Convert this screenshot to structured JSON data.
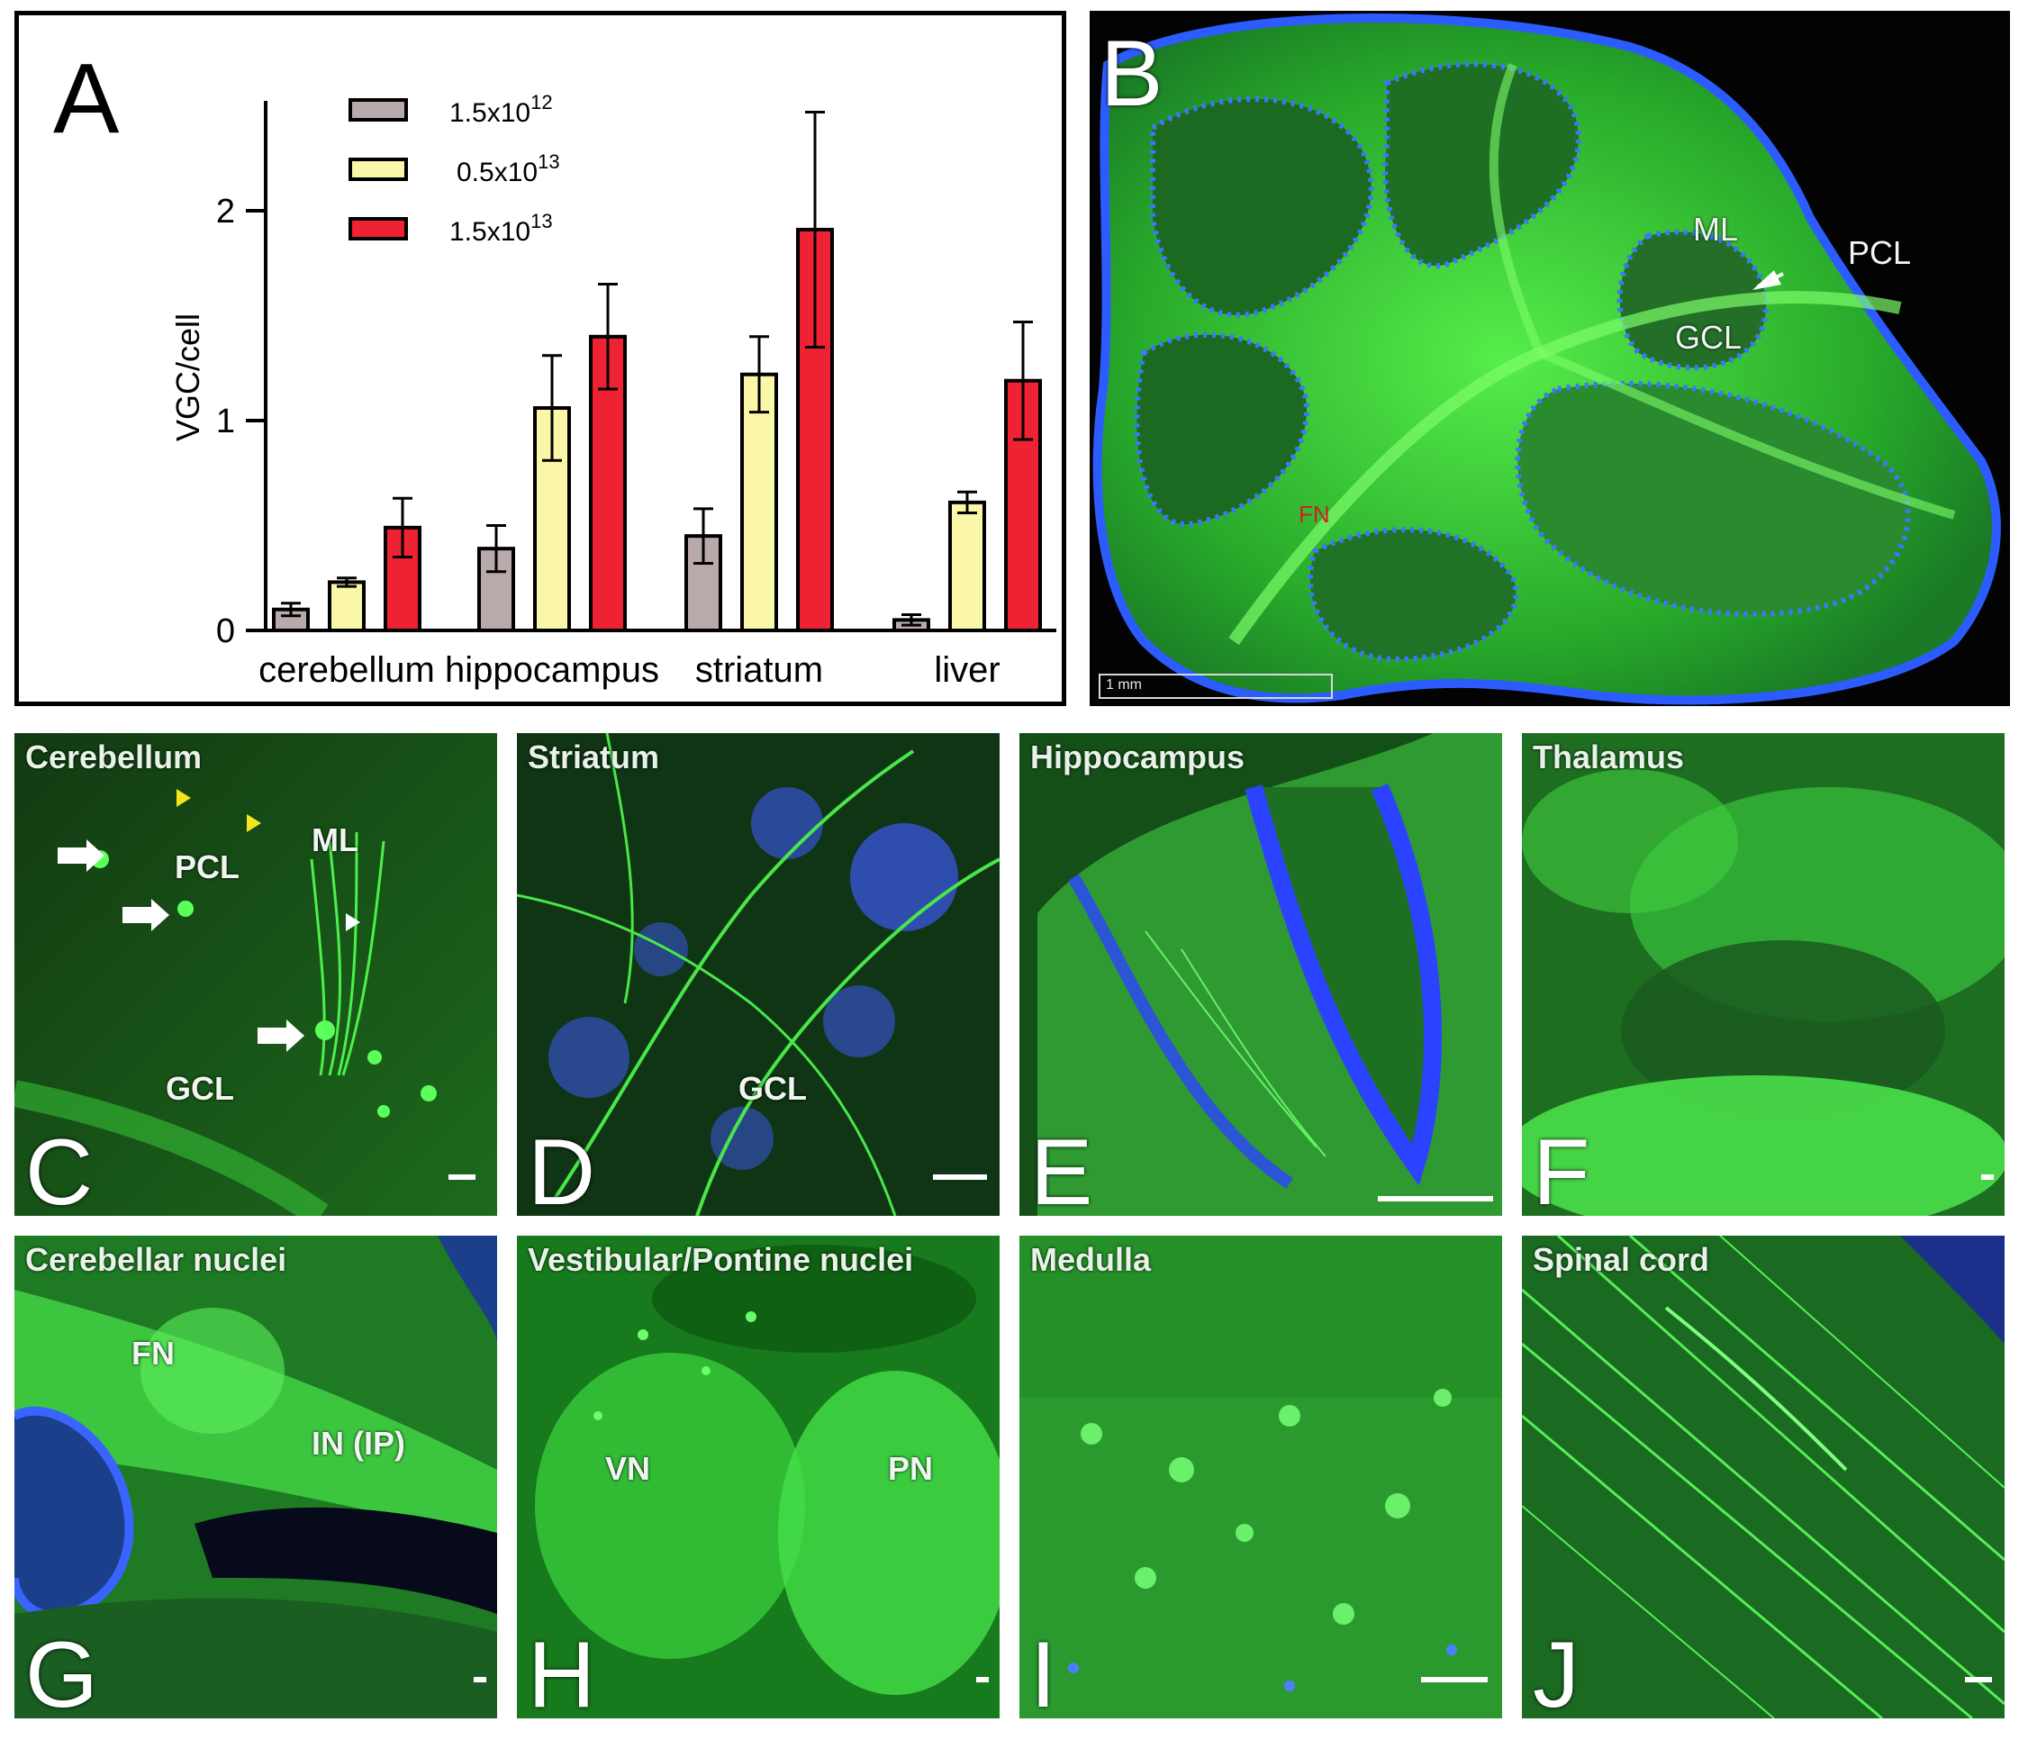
{
  "chart_data": {
    "type": "bar",
    "panel_letter": "A",
    "ylabel": "VGC/cell",
    "ylim": [
      0,
      2.5
    ],
    "yticks": [
      "0",
      "1",
      "2"
    ],
    "categories": [
      "cerebellum",
      "hippocampus",
      "striatum",
      "liver"
    ],
    "series": [
      {
        "name": "1.5x10",
        "exponent": "12",
        "color": "#b8a9ab",
        "values": [
          0.1,
          0.39,
          0.45,
          0.05
        ],
        "errors": [
          0.03,
          0.11,
          0.13,
          0.025
        ]
      },
      {
        "name": "0.5x10",
        "exponent": "13",
        "color": "#fbf7a8",
        "values": [
          0.23,
          1.06,
          1.22,
          0.61
        ],
        "errors": [
          0.02,
          0.25,
          0.18,
          0.05
        ]
      },
      {
        "name": "1.5x10",
        "exponent": "13",
        "color": "#ee2232",
        "values": [
          0.49,
          1.4,
          1.91,
          1.19
        ],
        "errors": [
          0.14,
          0.25,
          0.56,
          0.28
        ]
      }
    ],
    "legend_position": "top-left"
  },
  "panel_b": {
    "letter": "B",
    "labels": {
      "ml": "ML",
      "pcl": "PCL",
      "gcl": "GCL",
      "fn": "FN"
    },
    "scale": "1 mm"
  },
  "panels": [
    {
      "id": "C",
      "letter": "C",
      "title": "Cerebellum",
      "labels": [
        "PCL",
        "ML",
        "GCL"
      ]
    },
    {
      "id": "D",
      "letter": "D",
      "title": "Striatum",
      "labels": [
        "GCL"
      ]
    },
    {
      "id": "E",
      "letter": "E",
      "title": "Hippocampus",
      "labels": []
    },
    {
      "id": "F",
      "letter": "F",
      "title": "Thalamus",
      "labels": []
    },
    {
      "id": "G",
      "letter": "G",
      "title": "Cerebellar nuclei",
      "labels": [
        "FN",
        "IN (IP)"
      ]
    },
    {
      "id": "H",
      "letter": "H",
      "title": "Vestibular/Pontine nuclei",
      "labels": [
        "VN",
        "PN"
      ]
    },
    {
      "id": "I",
      "letter": "I",
      "title": "Medulla",
      "labels": []
    },
    {
      "id": "J",
      "letter": "J",
      "title": "Spinal cord",
      "labels": []
    }
  ],
  "colors": {
    "tissue_green": "#2fd02f",
    "nuclei_blue": "#2a46e0",
    "background": "#020302"
  }
}
